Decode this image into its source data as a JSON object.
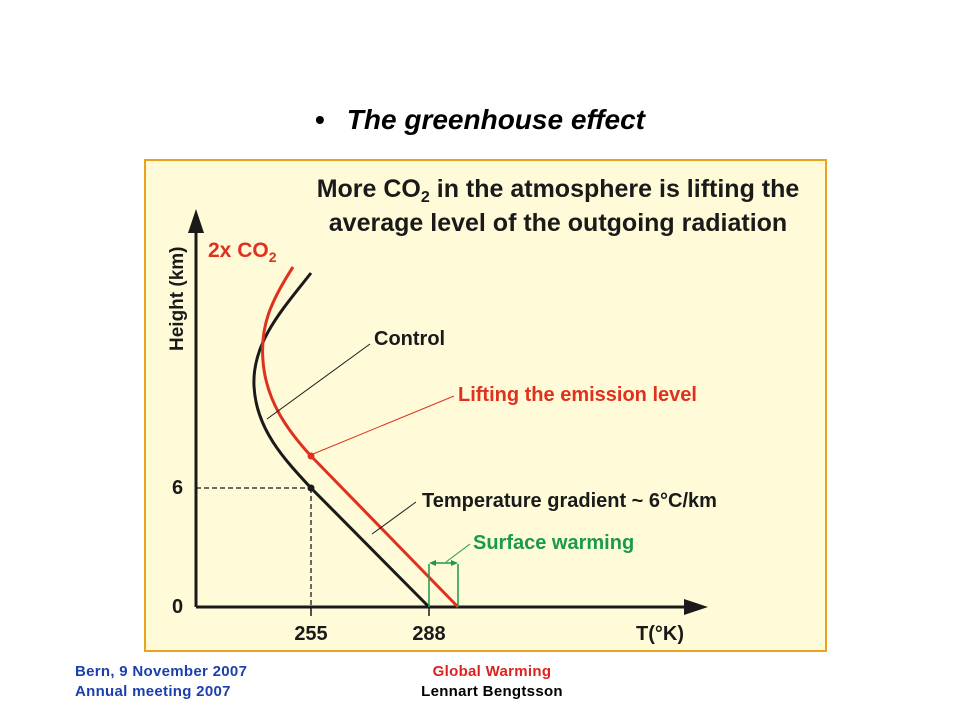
{
  "slide": {
    "bullet": "•",
    "title": "The greenhouse effect"
  },
  "figure": {
    "headline_line1_a": "More CO",
    "headline_line1_sub": "2",
    "headline_line1_b": " in the atmosphere is lifting the",
    "headline_line2": "average level of the outgoing radiation",
    "y_axis_label": "Height (km)",
    "x_axis_label": "T(°K)",
    "y_tick_6": "6",
    "y_tick_0": "0",
    "x_tick_255": "255",
    "x_tick_288": "288",
    "label_2xco2_a": "2x CO",
    "label_2xco2_sub": "2",
    "label_control": "Control",
    "label_lifting": "Lifting the emission level",
    "label_gradient": "Temperature gradient  ~ 6°C/km",
    "label_surface": "Surface warming",
    "colors": {
      "panel_background": "#fffbd8",
      "panel_border": "#e8a21c",
      "control_curve": "#000000",
      "co2_curve": "#e0301e",
      "surface_label": "#1a9a4a",
      "lifting_label": "#e0301e"
    }
  },
  "footer": {
    "left_line1": "Bern, 9 November  2007",
    "left_line2": "Annual  meeting  2007",
    "right_line1": "Global  Warming",
    "right_line2": "Lennart  Bengtsson"
  }
}
